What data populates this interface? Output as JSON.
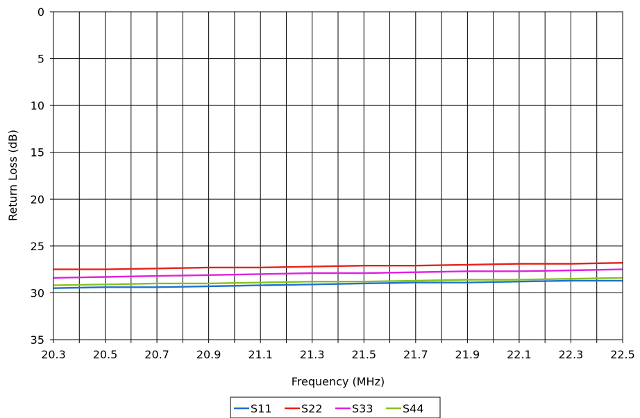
{
  "chart_data": {
    "type": "line",
    "title": "",
    "xlabel": "Frequency (MHz)",
    "ylabel": "Return Loss (dB)",
    "xlim": [
      20.3,
      22.5
    ],
    "ylim": [
      0,
      35
    ],
    "y_inverted": true,
    "x_ticks": [
      "20.3",
      "20.5",
      "20.7",
      "20.9",
      "21.1",
      "21.3",
      "21.5",
      "21.7",
      "21.9",
      "22.1",
      "22.3",
      "22.5"
    ],
    "y_ticks": [
      "0",
      "5",
      "10",
      "15",
      "20",
      "25",
      "30",
      "35"
    ],
    "grid": true,
    "legend_position": "bottom",
    "x": [
      20.3,
      20.5,
      20.7,
      20.9,
      21.1,
      21.3,
      21.5,
      21.7,
      21.9,
      22.1,
      22.3,
      22.5
    ],
    "series": [
      {
        "name": "S11",
        "color": "#1f6fd1",
        "values": [
          29.5,
          29.4,
          29.4,
          29.3,
          29.2,
          29.1,
          29.0,
          28.9,
          28.9,
          28.8,
          28.7,
          28.7
        ]
      },
      {
        "name": "S22",
        "color": "#e8201a",
        "values": [
          27.5,
          27.5,
          27.4,
          27.3,
          27.3,
          27.2,
          27.1,
          27.1,
          27.0,
          26.9,
          26.9,
          26.8
        ]
      },
      {
        "name": "S33",
        "color": "#e020e0",
        "values": [
          28.4,
          28.3,
          28.2,
          28.1,
          28.0,
          27.9,
          27.9,
          27.8,
          27.7,
          27.7,
          27.6,
          27.5
        ]
      },
      {
        "name": "S44",
        "color": "#86c21a",
        "values": [
          29.2,
          29.1,
          29.0,
          29.0,
          28.9,
          28.8,
          28.8,
          28.7,
          28.6,
          28.6,
          28.5,
          28.4
        ]
      }
    ]
  }
}
